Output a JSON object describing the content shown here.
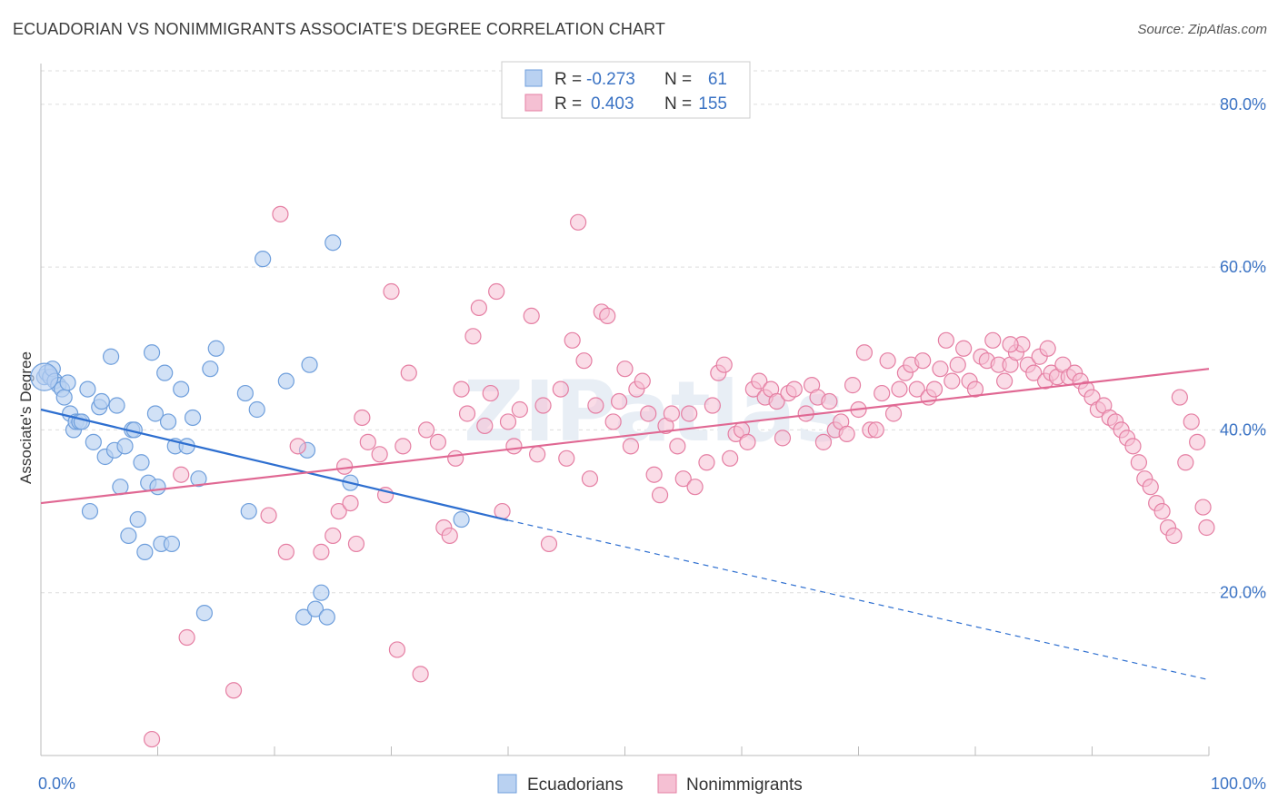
{
  "title": "ECUADORIAN VS NONIMMIGRANTS ASSOCIATE'S DEGREE CORRELATION CHART",
  "source": "Source: ZipAtlas.com",
  "watermark": "ZIPatlas",
  "colors": {
    "blue": "#6f9fdc",
    "blue_fill": "#b9d1f1",
    "blue_line": "#2e6fd0",
    "pink": "#e57fa3",
    "pink_fill": "#f5c0d3",
    "pink_line": "#e06893",
    "axis_text": "#3b73c4",
    "grid": "#dddddd"
  },
  "legend": {
    "rows": [
      {
        "r_label": "R =",
        "r_value": "-0.273",
        "n_label": "N =",
        "n_value": "61"
      },
      {
        "r_label": "R =",
        "r_value": "0.403",
        "n_label": "N =",
        "n_value": "155"
      }
    ]
  },
  "bottom_legend": [
    "Ecuadorians",
    "Nonimmigrants"
  ],
  "chart_data": {
    "type": "scatter",
    "title": "ECUADORIAN VS NONIMMIGRANTS ASSOCIATE'S DEGREE CORRELATION CHART",
    "xlabel": "",
    "ylabel": "Associate's Degree",
    "xlim": [
      0,
      100
    ],
    "ylim": [
      0,
      85
    ],
    "x_tick_labels": [
      "0.0%",
      "100.0%"
    ],
    "y_ticks": [
      20,
      40,
      60,
      80
    ],
    "y_tick_labels": [
      "20.0%",
      "40.0%",
      "60.0%",
      "80.0%"
    ],
    "grid": true,
    "legend_position": "top-center",
    "series": [
      {
        "name": "Ecuadorians",
        "trend": {
          "x0": 0,
          "y0": 42.5,
          "x1": 40,
          "y1": 28.9,
          "dashed_to_x": 100,
          "dashed_to_y": 9.3
        },
        "points": [
          [
            0.3,
            46.5
          ],
          [
            0.5,
            47.0
          ],
          [
            0.8,
            46.5
          ],
          [
            1.0,
            47.5
          ],
          [
            1.2,
            46.0
          ],
          [
            1.5,
            45.5
          ],
          [
            1.8,
            45.0
          ],
          [
            2.0,
            44.0
          ],
          [
            2.3,
            45.8
          ],
          [
            2.5,
            42.0
          ],
          [
            2.8,
            40.0
          ],
          [
            3.0,
            41.0
          ],
          [
            3.3,
            41.0
          ],
          [
            3.5,
            41.0
          ],
          [
            4.0,
            45.0
          ],
          [
            4.2,
            30.0
          ],
          [
            4.5,
            38.5
          ],
          [
            5.0,
            42.8
          ],
          [
            5.2,
            43.5
          ],
          [
            5.5,
            36.7
          ],
          [
            6.0,
            49.0
          ],
          [
            6.3,
            37.5
          ],
          [
            6.5,
            43.0
          ],
          [
            6.8,
            33.0
          ],
          [
            7.2,
            38.0
          ],
          [
            7.5,
            27.0
          ],
          [
            7.8,
            40.0
          ],
          [
            8.0,
            40.0
          ],
          [
            8.3,
            29.0
          ],
          [
            8.6,
            36.0
          ],
          [
            8.9,
            25.0
          ],
          [
            9.2,
            33.5
          ],
          [
            9.5,
            49.5
          ],
          [
            9.8,
            42.0
          ],
          [
            10.0,
            33.0
          ],
          [
            10.3,
            26.0
          ],
          [
            10.6,
            47.0
          ],
          [
            10.9,
            41.0
          ],
          [
            11.2,
            26.0
          ],
          [
            11.5,
            38.0
          ],
          [
            12.0,
            45.0
          ],
          [
            12.5,
            38.0
          ],
          [
            13.0,
            41.5
          ],
          [
            13.5,
            34.0
          ],
          [
            14.0,
            17.5
          ],
          [
            14.5,
            47.5
          ],
          [
            15.0,
            50.0
          ],
          [
            17.5,
            44.5
          ],
          [
            17.8,
            30.0
          ],
          [
            18.5,
            42.5
          ],
          [
            19.0,
            61.0
          ],
          [
            21.0,
            46.0
          ],
          [
            22.5,
            17.0
          ],
          [
            22.8,
            37.5
          ],
          [
            23.0,
            48.0
          ],
          [
            23.5,
            18.0
          ],
          [
            24.0,
            20.0
          ],
          [
            24.5,
            17.0
          ],
          [
            25.0,
            63.0
          ],
          [
            26.5,
            33.5
          ],
          [
            36.0,
            29.0
          ]
        ]
      },
      {
        "name": "Nonimmigrants",
        "trend": {
          "x0": 0,
          "y0": 31.0,
          "x1": 100,
          "y1": 47.5
        },
        "points": [
          [
            9.5,
            2.0
          ],
          [
            12.0,
            34.5
          ],
          [
            12.5,
            14.5
          ],
          [
            16.5,
            8.0
          ],
          [
            19.5,
            29.5
          ],
          [
            20.5,
            66.5
          ],
          [
            21.0,
            25.0
          ],
          [
            22.0,
            38.0
          ],
          [
            24.0,
            25.0
          ],
          [
            25.0,
            27.0
          ],
          [
            25.5,
            30.0
          ],
          [
            26.0,
            35.5
          ],
          [
            26.5,
            31.0
          ],
          [
            27.0,
            26.0
          ],
          [
            27.5,
            41.5
          ],
          [
            28.0,
            38.5
          ],
          [
            29.0,
            37.0
          ],
          [
            29.5,
            32.0
          ],
          [
            30.0,
            57.0
          ],
          [
            30.5,
            13.0
          ],
          [
            31.0,
            38.0
          ],
          [
            31.5,
            47.0
          ],
          [
            32.5,
            10.0
          ],
          [
            33.0,
            40.0
          ],
          [
            34.0,
            38.5
          ],
          [
            34.5,
            28.0
          ],
          [
            35.0,
            27.0
          ],
          [
            35.5,
            36.5
          ],
          [
            36.0,
            45.0
          ],
          [
            36.5,
            42.0
          ],
          [
            37.0,
            51.5
          ],
          [
            37.5,
            55.0
          ],
          [
            38.0,
            40.5
          ],
          [
            38.5,
            44.5
          ],
          [
            39.0,
            57.0
          ],
          [
            39.5,
            30.0
          ],
          [
            40.0,
            41.0
          ],
          [
            40.5,
            38.0
          ],
          [
            41.0,
            42.5
          ],
          [
            42.0,
            54.0
          ],
          [
            42.5,
            37.0
          ],
          [
            43.0,
            43.0
          ],
          [
            43.5,
            26.0
          ],
          [
            44.5,
            45.0
          ],
          [
            45.0,
            36.5
          ],
          [
            45.5,
            51.0
          ],
          [
            46.0,
            65.5
          ],
          [
            46.5,
            48.5
          ],
          [
            47.0,
            34.0
          ],
          [
            47.5,
            43.0
          ],
          [
            48.0,
            54.5
          ],
          [
            48.5,
            54.0
          ],
          [
            49.0,
            41.0
          ],
          [
            49.5,
            43.5
          ],
          [
            50.0,
            47.5
          ],
          [
            50.5,
            38.0
          ],
          [
            51.0,
            45.0
          ],
          [
            51.5,
            46.0
          ],
          [
            52.0,
            42.0
          ],
          [
            52.5,
            34.5
          ],
          [
            53.0,
            32.0
          ],
          [
            53.5,
            40.5
          ],
          [
            54.0,
            42.0
          ],
          [
            54.5,
            38.0
          ],
          [
            55.0,
            34.0
          ],
          [
            55.5,
            42.0
          ],
          [
            56.0,
            33.0
          ],
          [
            57.0,
            36.0
          ],
          [
            57.5,
            43.0
          ],
          [
            58.0,
            47.0
          ],
          [
            58.5,
            48.0
          ],
          [
            59.0,
            36.5
          ],
          [
            59.5,
            39.5
          ],
          [
            60.0,
            40.0
          ],
          [
            60.5,
            38.5
          ],
          [
            61.0,
            45.0
          ],
          [
            61.5,
            46.0
          ],
          [
            62.0,
            44.0
          ],
          [
            62.5,
            45.0
          ],
          [
            63.0,
            43.5
          ],
          [
            63.5,
            39.0
          ],
          [
            64.0,
            44.5
          ],
          [
            64.5,
            45.0
          ],
          [
            65.5,
            42.0
          ],
          [
            66.0,
            45.5
          ],
          [
            66.5,
            44.0
          ],
          [
            67.0,
            38.5
          ],
          [
            67.5,
            43.5
          ],
          [
            68.0,
            40.0
          ],
          [
            68.5,
            41.0
          ],
          [
            69.0,
            39.5
          ],
          [
            69.5,
            45.5
          ],
          [
            70.0,
            42.5
          ],
          [
            70.5,
            49.5
          ],
          [
            71.0,
            40.0
          ],
          [
            71.5,
            40.0
          ],
          [
            72.0,
            44.5
          ],
          [
            72.5,
            48.5
          ],
          [
            73.0,
            42.0
          ],
          [
            73.5,
            45.0
          ],
          [
            74.0,
            47.0
          ],
          [
            74.5,
            48.0
          ],
          [
            75.0,
            45.0
          ],
          [
            75.5,
            48.5
          ],
          [
            76.0,
            44.0
          ],
          [
            76.5,
            45.0
          ],
          [
            77.0,
            47.5
          ],
          [
            77.5,
            51.0
          ],
          [
            78.0,
            46.0
          ],
          [
            78.5,
            48.0
          ],
          [
            79.0,
            50.0
          ],
          [
            79.5,
            46.0
          ],
          [
            80.0,
            45.0
          ],
          [
            80.5,
            49.0
          ],
          [
            81.0,
            48.5
          ],
          [
            81.5,
            51.0
          ],
          [
            82.0,
            48.0
          ],
          [
            82.5,
            46.0
          ],
          [
            83.0,
            48.0
          ],
          [
            83.5,
            49.5
          ],
          [
            84.0,
            50.5
          ],
          [
            84.5,
            48.0
          ],
          [
            85.0,
            47.0
          ],
          [
            85.5,
            49.0
          ],
          [
            86.0,
            46.0
          ],
          [
            86.5,
            47.0
          ],
          [
            87.0,
            46.5
          ],
          [
            87.5,
            48.0
          ],
          [
            88.0,
            46.5
          ],
          [
            88.5,
            47.0
          ],
          [
            89.0,
            46.0
          ],
          [
            89.5,
            45.0
          ],
          [
            90.0,
            44.0
          ],
          [
            90.5,
            42.5
          ],
          [
            91.0,
            43.0
          ],
          [
            91.5,
            41.5
          ],
          [
            92.0,
            41.0
          ],
          [
            92.5,
            40.0
          ],
          [
            93.0,
            39.0
          ],
          [
            93.5,
            38.0
          ],
          [
            94.0,
            36.0
          ],
          [
            94.5,
            34.0
          ],
          [
            95.0,
            33.0
          ],
          [
            95.5,
            31.0
          ],
          [
            96.0,
            30.0
          ],
          [
            96.5,
            28.0
          ],
          [
            97.0,
            27.0
          ],
          [
            97.5,
            44.0
          ],
          [
            98.0,
            36.0
          ],
          [
            98.5,
            41.0
          ],
          [
            99.0,
            38.5
          ],
          [
            99.5,
            30.5
          ],
          [
            99.8,
            28.0
          ],
          [
            86.2,
            50.0
          ],
          [
            83.0,
            50.5
          ]
        ]
      }
    ]
  }
}
